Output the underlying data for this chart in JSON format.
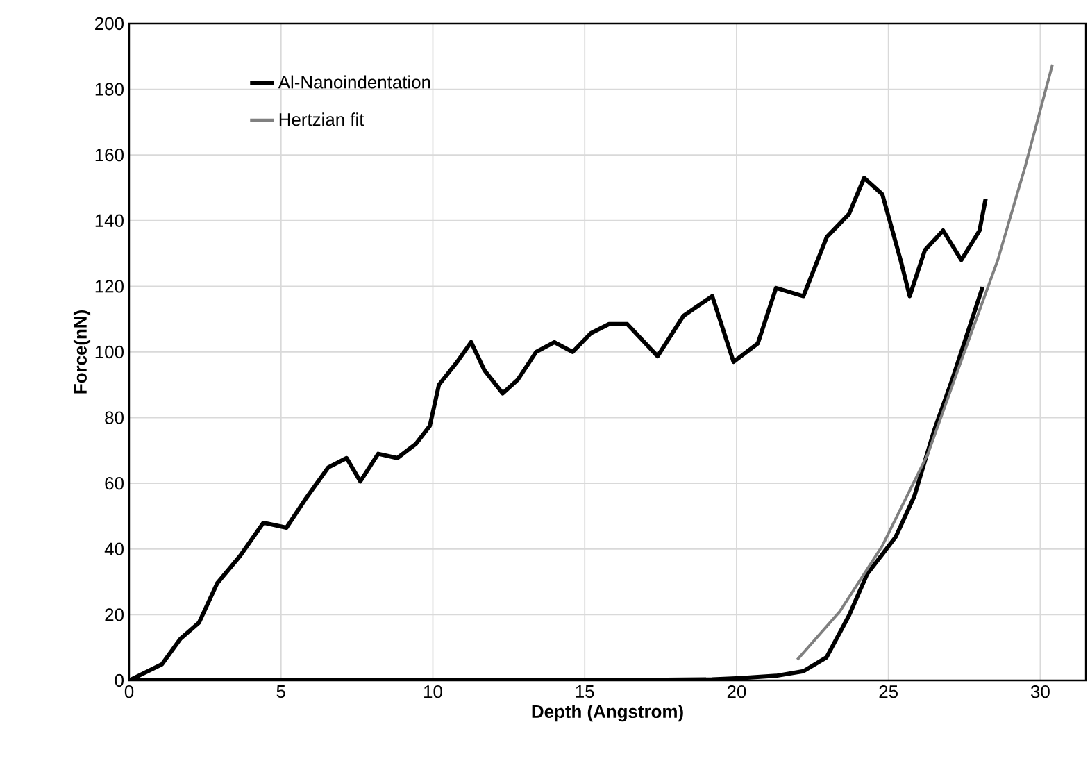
{
  "chart_data": {
    "type": "line",
    "xlabel": "Depth (Angstrom)",
    "ylabel": "Force(nN)",
    "xlim": [
      0,
      31.5
    ],
    "xticks": [
      0,
      5,
      10,
      15,
      20,
      25,
      30
    ],
    "ylim": [
      0,
      200
    ],
    "yticks": [
      0,
      20,
      40,
      60,
      80,
      100,
      120,
      140,
      160,
      180,
      200
    ],
    "grid": true,
    "legend": "top left",
    "marker": "none",
    "line_style": "solid",
    "series": [
      {
        "name": "Al-Nanoindentation",
        "color": "#000000",
        "x": [
          0,
          1.08,
          1.69,
          2.3,
          2.9,
          3.66,
          4.42,
          5.18,
          5.79,
          6.55,
          7.16,
          7.61,
          8.2,
          8.83,
          9.44,
          9.9,
          10.2,
          10.8,
          11.26,
          11.7,
          12.3,
          12.8,
          13.4,
          14.0,
          14.6,
          15.2,
          15.8,
          16.4,
          17.4,
          18.25,
          19.2,
          19.9,
          20.7,
          21.3,
          22.2,
          22.97,
          23.7,
          24.2,
          24.8,
          25.4,
          25.7,
          26.2,
          26.8,
          27.4,
          28.0,
          28.2
        ],
        "values": [
          0,
          4.9,
          12.7,
          17.6,
          29.6,
          38,
          48,
          46.5,
          55,
          64.8,
          67.7,
          60.6,
          69,
          67.7,
          72,
          77.5,
          90,
          97,
          103,
          94.4,
          87.4,
          91.6,
          100,
          103,
          100,
          105.7,
          108.5,
          108.5,
          98.7,
          111,
          117,
          97,
          102.6,
          119.5,
          117,
          135,
          142,
          153,
          148,
          128,
          117,
          131,
          137,
          128,
          137,
          146.6
        ]
      },
      {
        "color": "#000000",
        "x": [
          0,
          15,
          19.2,
          20.1,
          21.3,
          22.2,
          22.96,
          23.7,
          24.3,
          25.24,
          25.85,
          26.5,
          27.1,
          27.7,
          28.1
        ],
        "values": [
          0,
          0,
          0.3,
          0.7,
          1.4,
          2.8,
          7,
          19.7,
          32.4,
          43.7,
          56,
          76,
          91.6,
          108.5,
          119.8
        ]
      },
      {
        "name": "Hertzian fit",
        "color": "#808080",
        "x": [
          22.0,
          23.4,
          24.8,
          26.3,
          27.5,
          28.6,
          29.5,
          30.4
        ],
        "values": [
          6.3,
          21,
          41,
          69,
          100,
          128,
          156.4,
          187.5
        ]
      }
    ]
  }
}
